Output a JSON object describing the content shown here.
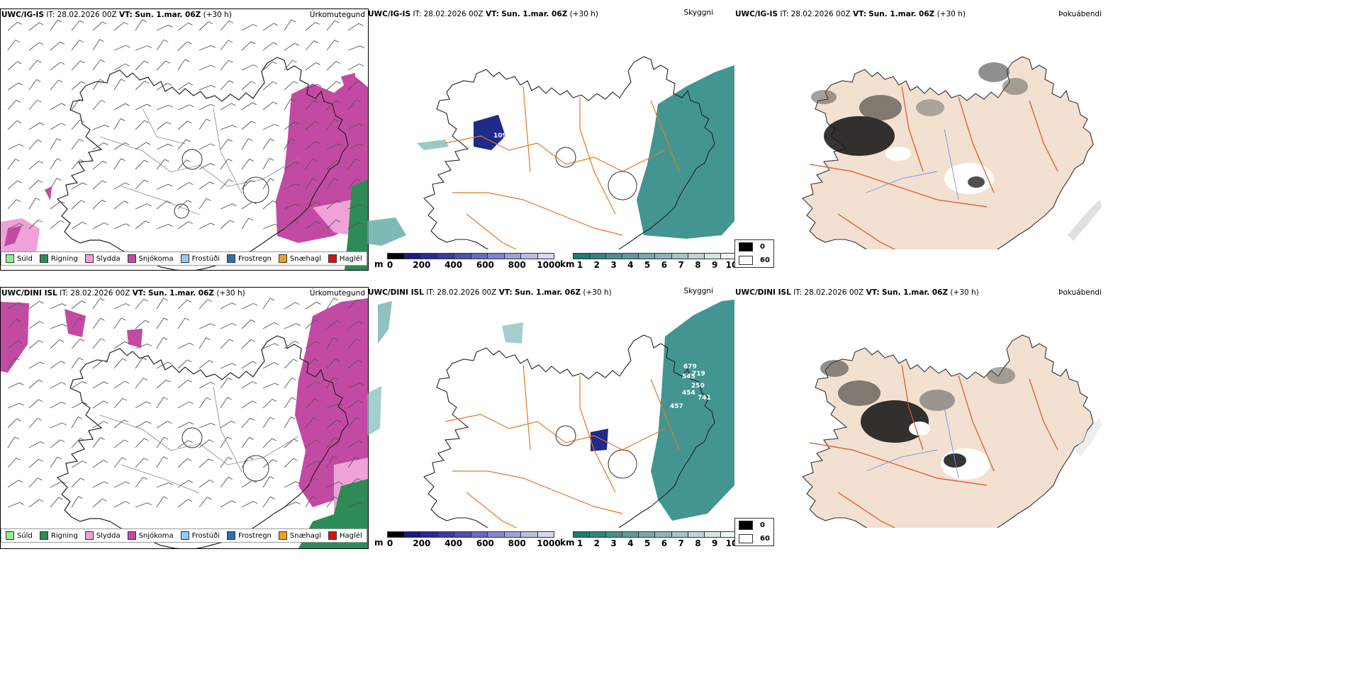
{
  "panels": {
    "top_left": {
      "model": "UWC/IG-IS",
      "it": "IT: 28.02.2026 00Z",
      "vt_label": "VT:",
      "vt": "Sun. 1.mar. 06Z",
      "lead": "(+30 h)",
      "label": "Úrkomutegund"
    },
    "top_mid": {
      "model": "UWC/IG-IS",
      "it": "IT: 28.02.2026 00Z",
      "vt_label": "VT:",
      "vt": "Sun. 1.mar. 06Z",
      "lead": "(+30 h)",
      "label": "Skyggni"
    },
    "top_right": {
      "model": "UWC/IG-IS",
      "it": "IT: 28.02.2026 00Z",
      "vt_label": "VT:",
      "vt": "Sun. 1.mar. 06Z",
      "lead": "(+30 h)",
      "label": "Þokuábendi"
    },
    "bot_left": {
      "model": "UWC/DINI ISL",
      "it": "IT: 28.02.2026 00Z",
      "vt_label": "VT:",
      "vt": "Sun. 1.mar. 06Z",
      "lead": "(+30 h)",
      "label": "Úrkomutegund"
    },
    "bot_mid": {
      "model": "UWC/DINI ISL",
      "it": "IT: 28.02.2026 00Z",
      "vt_label": "VT:",
      "vt": "Sun. 1.mar. 06Z",
      "lead": "(+30 h)",
      "label": "Skyggni"
    },
    "bot_right": {
      "model": "UWC/DINI ISL",
      "it": "IT: 28.02.2026 00Z",
      "vt_label": "VT:",
      "vt": "Sun. 1.mar. 06Z",
      "lead": "(+30 h)",
      "label": "Þokuábendi"
    }
  },
  "precip_legend": [
    {
      "label": "Súld",
      "color": "#90ee90"
    },
    {
      "label": "Rigning",
      "color": "#2e8b57"
    },
    {
      "label": "Slydda",
      "color": "#eea2d8"
    },
    {
      "label": "Snjókoma",
      "color": "#c34aa3"
    },
    {
      "label": "Frostúði",
      "color": "#99c8f0"
    },
    {
      "label": "Frostregn",
      "color": "#2f6fb3"
    },
    {
      "label": "Snæhagl",
      "color": "#f0a020"
    },
    {
      "label": "Haglél",
      "color": "#e01010"
    }
  ],
  "visibility_colorbars": {
    "m": {
      "unit": "m",
      "ticks": [
        "0",
        "200",
        "400",
        "600",
        "800",
        "1000"
      ],
      "colors": [
        "#000000",
        "#1a1a80",
        "#2a2a95",
        "#3a3aa0",
        "#5050b0",
        "#6a6abf",
        "#8585cc",
        "#a0a0d8",
        "#bcbce4",
        "#d8d8ef"
      ]
    },
    "km": {
      "unit": "km",
      "ticks": [
        "1",
        "2",
        "3",
        "4",
        "5",
        "6",
        "7",
        "8",
        "9",
        "10"
      ],
      "colors": [
        "#207a75",
        "#35837f",
        "#4a8f8b",
        "#5f9b97",
        "#76a8a5",
        "#8db6b3",
        "#a5c5c3",
        "#bed5d3",
        "#d7e5e4",
        "#f0f5f5"
      ]
    }
  },
  "fog_legend": [
    {
      "value": "0",
      "color": "#000000"
    },
    {
      "value": "60",
      "color": "#ffffff"
    }
  ],
  "annotations": {
    "top_mid": [
      "109"
    ],
    "bot_mid": [
      "679",
      "545",
      "719",
      "250",
      "454",
      "741",
      "457"
    ]
  },
  "colors": {
    "land_fog": "#f2e0d0",
    "roads": "#e87722",
    "roads_fog": "#e0502a",
    "rivers": "#7d8cf0",
    "snow": "#c34aa3",
    "sleet": "#eea2d8",
    "rain": "#2e8b57",
    "low_vis": "#2f8a85",
    "dense_vis": "#1f2a8a"
  }
}
